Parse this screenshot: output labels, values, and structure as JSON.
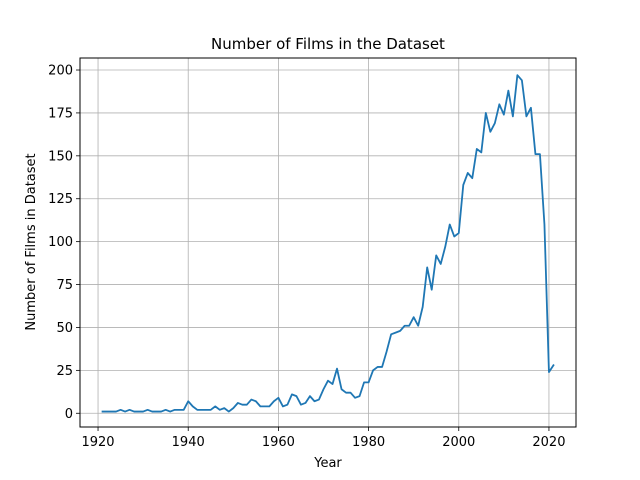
{
  "chart_data": {
    "type": "line",
    "title": "Number of Films in the Dataset",
    "xlabel": "Year",
    "ylabel": "Number of Films in Dataset",
    "xlim": [
      1916,
      2026
    ],
    "ylim": [
      -8,
      207
    ],
    "xticks": [
      1920,
      1940,
      1960,
      1980,
      2000,
      2020
    ],
    "yticks": [
      0,
      25,
      50,
      75,
      100,
      125,
      150,
      175,
      200
    ],
    "grid": true,
    "line_color": "#1f77b4",
    "series": [
      {
        "x": [
          1921,
          1922,
          1923,
          1924,
          1925,
          1926,
          1927,
          1928,
          1929,
          1930,
          1931,
          1932,
          1933,
          1934,
          1935,
          1936,
          1937,
          1938,
          1939,
          1940,
          1941,
          1942,
          1943,
          1944,
          1945,
          1946,
          1947,
          1948,
          1949,
          1950,
          1951,
          1952,
          1953,
          1954,
          1955,
          1956,
          1957,
          1958,
          1959,
          1960,
          1961,
          1962,
          1963,
          1964,
          1965,
          1966,
          1967,
          1968,
          1969,
          1970,
          1971,
          1972,
          1973,
          1974,
          1975,
          1976,
          1977,
          1978,
          1979,
          1980,
          1981,
          1982,
          1983,
          1984,
          1985,
          1986,
          1987,
          1988,
          1989,
          1990,
          1991,
          1992,
          1993,
          1994,
          1995,
          1996,
          1997,
          1998,
          1999,
          2000,
          2001,
          2002,
          2003,
          2004,
          2005,
          2006,
          2007,
          2008,
          2009,
          2010,
          2011,
          2012,
          2013,
          2014,
          2015,
          2016,
          2017,
          2018,
          2019,
          2020,
          2021
        ],
        "values": [
          1,
          1,
          1,
          1,
          2,
          1,
          2,
          1,
          1,
          1,
          2,
          1,
          1,
          1,
          2,
          1,
          2,
          2,
          2,
          7,
          4,
          2,
          2,
          2,
          2,
          4,
          2,
          3,
          1,
          3,
          6,
          5,
          5,
          8,
          7,
          4,
          4,
          4,
          7,
          9,
          4,
          5,
          11,
          10,
          5,
          6,
          10,
          7,
          8,
          14,
          19,
          17,
          26,
          14,
          12,
          12,
          9,
          10,
          18,
          18,
          25,
          27,
          27,
          36,
          46,
          47,
          48,
          51,
          51,
          56,
          51,
          62,
          85,
          72,
          92,
          87,
          97,
          110,
          103,
          105,
          133,
          140,
          137,
          154,
          152,
          175,
          164,
          169,
          180,
          174,
          188,
          173,
          197,
          194,
          173,
          178,
          151,
          151,
          110,
          24,
          28
        ]
      }
    ]
  }
}
